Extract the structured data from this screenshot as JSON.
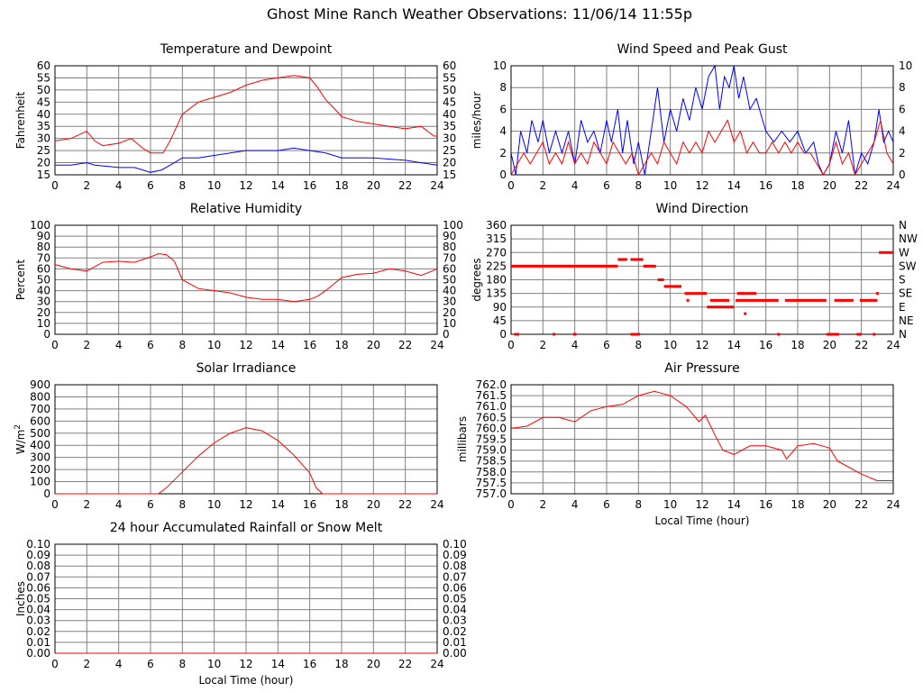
{
  "page": {
    "title": "Ghost Mine Ranch Weather Observations: 11/06/14 11:55p"
  },
  "colors": {
    "primary": "#ff0000",
    "secondary": "#0000ff",
    "grid": "#808080",
    "frame": "#000000"
  },
  "chart_data": [
    {
      "id": "temp",
      "type": "line",
      "title": "Temperature and Dewpoint",
      "xlabel": "",
      "ylabel": "Fahrenheit",
      "xlim": [
        0,
        24
      ],
      "ylim": [
        15,
        60
      ],
      "xticks": [
        0,
        2,
        4,
        6,
        8,
        10,
        12,
        14,
        16,
        18,
        20,
        22,
        24
      ],
      "yticks": [
        15,
        20,
        25,
        30,
        35,
        40,
        45,
        50,
        55,
        60
      ],
      "right_axis": true,
      "grid": true,
      "series": [
        {
          "color": "#ff0000",
          "x": [
            0,
            1,
            2,
            2.5,
            3,
            4,
            4.8,
            5.5,
            6,
            6.8,
            7.3,
            8,
            9,
            10,
            11,
            12,
            13,
            14,
            15,
            16,
            16.5,
            17,
            17.6,
            18,
            19,
            20,
            21,
            22,
            23,
            23.8,
            24
          ],
          "y": [
            29,
            30,
            33,
            29,
            27,
            28,
            30,
            26,
            24,
            24,
            30,
            40,
            45,
            47,
            49,
            52,
            54,
            55,
            56,
            55,
            51,
            46,
            42,
            39,
            37,
            36,
            35,
            34,
            35,
            31,
            31
          ]
        },
        {
          "color": "#0000ff",
          "x": [
            0,
            1,
            2,
            2.5,
            4,
            5,
            6,
            6.7,
            7.5,
            8,
            9,
            10,
            11,
            12,
            13,
            14,
            15,
            16,
            17,
            18,
            20,
            22,
            23,
            24
          ],
          "y": [
            19,
            19,
            20,
            19,
            18,
            18,
            16,
            17,
            20,
            22,
            22,
            23,
            24,
            25,
            25,
            25,
            26,
            25,
            24,
            22,
            22,
            21,
            20,
            19
          ]
        }
      ]
    },
    {
      "id": "wind",
      "type": "line",
      "title": "Wind Speed and Peak Gust",
      "xlabel": "",
      "ylabel": "miles/hour",
      "xlim": [
        0,
        24
      ],
      "ylim": [
        0,
        10
      ],
      "xticks": [
        0,
        2,
        4,
        6,
        8,
        10,
        12,
        14,
        16,
        18,
        20,
        22,
        24
      ],
      "yticks": [
        0,
        2,
        4,
        6,
        8,
        10
      ],
      "right_axis": true,
      "grid": true,
      "series": [
        {
          "color": "#0000ff",
          "x": [
            0,
            0.3,
            0.6,
            1,
            1.3,
            1.7,
            2,
            2.4,
            2.8,
            3.2,
            3.6,
            4,
            4.4,
            4.8,
            5.2,
            5.6,
            6,
            6.3,
            6.7,
            7,
            7.3,
            7.7,
            8,
            8.4,
            8.8,
            9.2,
            9.6,
            10,
            10.4,
            10.8,
            11.2,
            11.6,
            12,
            12.4,
            12.8,
            13.1,
            13.4,
            13.7,
            14,
            14.3,
            14.6,
            15,
            15.4,
            15.8,
            16,
            16.5,
            17,
            17.5,
            18,
            18.5,
            19,
            19.3,
            19.6,
            20,
            20.4,
            20.8,
            21.2,
            21.6,
            22,
            22.4,
            22.8,
            23.1,
            23.4,
            23.7,
            24
          ],
          "y": [
            2,
            0,
            4,
            2,
            5,
            3,
            5,
            2,
            4,
            2,
            4,
            1,
            5,
            3,
            4,
            2,
            5,
            3,
            6,
            2,
            5,
            1,
            3,
            0,
            4,
            8,
            3,
            6,
            4,
            7,
            5,
            8,
            6,
            9,
            10,
            6,
            9,
            8,
            10,
            7,
            9,
            6,
            7,
            5,
            4,
            3,
            4,
            3,
            4,
            2,
            3,
            1,
            0,
            1,
            4,
            2,
            5,
            0,
            2,
            1,
            3,
            6,
            3,
            4,
            3
          ]
        },
        {
          "color": "#ff0000",
          "x": [
            0,
            0.4,
            0.8,
            1.2,
            1.6,
            2,
            2.4,
            2.8,
            3.2,
            3.6,
            4,
            4.4,
            4.8,
            5.2,
            5.6,
            6,
            6.4,
            6.8,
            7.2,
            7.6,
            8,
            8.4,
            8.8,
            9.2,
            9.6,
            10,
            10.4,
            10.8,
            11.2,
            11.6,
            12,
            12.4,
            12.8,
            13.2,
            13.6,
            14,
            14.4,
            14.8,
            15.2,
            15.6,
            16,
            16.4,
            16.8,
            17.2,
            17.6,
            18,
            18.4,
            18.8,
            19.2,
            19.6,
            20,
            20.4,
            20.8,
            21.2,
            21.6,
            22,
            22.4,
            22.8,
            23.2,
            23.6,
            24
          ],
          "y": [
            0,
            1,
            2,
            1,
            2,
            3,
            1,
            2,
            1,
            3,
            1,
            2,
            1,
            3,
            2,
            1,
            3,
            2,
            1,
            2,
            0,
            1,
            2,
            1,
            3,
            2,
            1,
            3,
            2,
            3,
            2,
            4,
            3,
            4,
            5,
            3,
            4,
            2,
            3,
            2,
            2,
            3,
            2,
            3,
            2,
            3,
            2,
            2,
            1,
            0,
            1,
            3,
            1,
            2,
            0,
            1,
            2,
            3,
            5,
            2,
            1
          ]
        }
      ]
    },
    {
      "id": "rh",
      "type": "line",
      "title": "Relative Humidity",
      "xlabel": "",
      "ylabel": "Percent",
      "xlim": [
        0,
        24
      ],
      "ylim": [
        0,
        100
      ],
      "xticks": [
        0,
        2,
        4,
        6,
        8,
        10,
        12,
        14,
        16,
        18,
        20,
        22,
        24
      ],
      "yticks": [
        0,
        10,
        20,
        30,
        40,
        50,
        60,
        70,
        80,
        90,
        100
      ],
      "right_axis": true,
      "grid": true,
      "series": [
        {
          "color": "#ff0000",
          "x": [
            0,
            1,
            2,
            3,
            4,
            5,
            6,
            6.5,
            7,
            7.5,
            8,
            9,
            10,
            11,
            12,
            13,
            14,
            15,
            16,
            16.5,
            17,
            18,
            19,
            20,
            21,
            22,
            23,
            24
          ],
          "y": [
            64,
            60,
            58,
            66,
            67,
            66,
            71,
            74,
            73,
            67,
            50,
            42,
            40,
            38,
            34,
            32,
            32,
            30,
            32,
            35,
            40,
            52,
            55,
            56,
            60,
            58,
            54,
            60
          ]
        }
      ]
    },
    {
      "id": "dir",
      "type": "scatter",
      "title": "Wind Direction",
      "xlabel": "",
      "ylabel": "degrees",
      "xlim": [
        0,
        24
      ],
      "ylim": [
        0,
        360
      ],
      "xticks": [
        0,
        2,
        4,
        6,
        8,
        10,
        12,
        14,
        16,
        18,
        20,
        22,
        24
      ],
      "yticks": [
        0,
        45,
        90,
        135,
        180,
        225,
        270,
        315,
        360
      ],
      "right_labels": [
        "N",
        "NE",
        "E",
        "SE",
        "S",
        "SW",
        "W",
        "NW",
        "N"
      ],
      "grid": true,
      "segments": [
        {
          "x": [
            0,
            6.7
          ],
          "y": 225
        },
        {
          "x": [
            6.7,
            7.3
          ],
          "y": 247
        },
        {
          "x": [
            7.5,
            8.3
          ],
          "y": 247
        },
        {
          "x": [
            8.3,
            9.1
          ],
          "y": 225
        },
        {
          "x": [
            9.2,
            9.6
          ],
          "y": 180
        },
        {
          "x": [
            9.6,
            10.7
          ],
          "y": 158
        },
        {
          "x": [
            10.9,
            12.3
          ],
          "y": 135
        },
        {
          "x": [
            12.5,
            13.7
          ],
          "y": 112
        },
        {
          "x": [
            14.1,
            16.8
          ],
          "y": 112
        },
        {
          "x": [
            17.2,
            19.8
          ],
          "y": 112
        },
        {
          "x": [
            20.3,
            21.5
          ],
          "y": 112
        },
        {
          "x": [
            21.9,
            23
          ],
          "y": 112
        },
        {
          "x": [
            23.1,
            24
          ],
          "y": 270
        },
        {
          "x": [
            12.3,
            14
          ],
          "y": 90
        },
        {
          "x": [
            14.2,
            15.4
          ],
          "y": 135
        },
        {
          "x": [
            7.5,
            8.1
          ],
          "y": 0
        },
        {
          "x": [
            19.8,
            20.6
          ],
          "y": 0
        },
        {
          "x": [
            0.2,
            0.5
          ],
          "y": 0
        },
        {
          "x": [
            3.9,
            4.1
          ],
          "y": 0
        },
        {
          "x": [
            21.7,
            22
          ],
          "y": 0
        }
      ],
      "points": [
        {
          "x": 2.7,
          "y": 0
        },
        {
          "x": 16.8,
          "y": 0
        },
        {
          "x": 22.8,
          "y": 0
        },
        {
          "x": 11.1,
          "y": 112
        },
        {
          "x": 14.7,
          "y": 68
        },
        {
          "x": 23,
          "y": 135
        }
      ]
    },
    {
      "id": "solar",
      "type": "line",
      "title": "Solar Irradiance",
      "xlabel": "",
      "ylabel": "W/m",
      "ylabel_sup": "2",
      "xlim": [
        0,
        24
      ],
      "ylim": [
        0,
        900
      ],
      "xticks": [
        0,
        2,
        4,
        6,
        8,
        10,
        12,
        14,
        16,
        18,
        20,
        22,
        24
      ],
      "yticks": [
        0,
        100,
        200,
        300,
        400,
        500,
        600,
        700,
        800,
        900
      ],
      "right_axis": false,
      "grid": true,
      "series": [
        {
          "color": "#ff0000",
          "x": [
            0,
            6.5,
            7,
            8,
            9,
            10,
            11,
            12,
            13,
            14,
            15,
            16,
            16.4,
            16.8,
            24
          ],
          "y": [
            0,
            0,
            50,
            180,
            310,
            420,
            500,
            545,
            520,
            440,
            320,
            170,
            50,
            0,
            0
          ]
        }
      ]
    },
    {
      "id": "pressure",
      "type": "line",
      "title": "Air Pressure",
      "xlabel": "Local Time (hour)",
      "ylabel": "millibars",
      "xlim": [
        0,
        24
      ],
      "ylim": [
        757.0,
        762.0
      ],
      "xticks": [
        0,
        2,
        4,
        6,
        8,
        10,
        12,
        14,
        16,
        18,
        20,
        22,
        24
      ],
      "yticks": [
        757.0,
        757.5,
        758.0,
        758.5,
        759.0,
        759.5,
        760.0,
        760.5,
        761.0,
        761.5,
        762.0
      ],
      "ytick_labels": [
        "757.0",
        "757.5",
        "758.0",
        "758.5",
        "759.0",
        "759.5",
        "760.0",
        "760.5",
        "761.0",
        "761.5",
        "762.0"
      ],
      "right_axis": false,
      "grid": true,
      "series": [
        {
          "color": "#ff0000",
          "x": [
            0,
            1,
            2,
            3,
            4,
            5,
            6,
            7,
            8,
            9,
            9.5,
            10,
            11,
            11.8,
            12.2,
            12.8,
            13.3,
            14,
            15,
            16,
            17,
            17.3,
            18,
            19,
            20,
            20.5,
            21,
            22,
            23,
            24
          ],
          "y": [
            760.0,
            760.1,
            760.5,
            760.5,
            760.3,
            760.8,
            761.0,
            761.1,
            761.5,
            761.7,
            761.6,
            761.5,
            761.0,
            760.3,
            760.6,
            759.7,
            759.0,
            758.8,
            759.2,
            759.2,
            759.0,
            758.6,
            759.2,
            759.3,
            759.1,
            758.5,
            758.3,
            757.9,
            757.6,
            757.6
          ]
        }
      ]
    },
    {
      "id": "rain",
      "type": "line",
      "title": "24 hour Accumulated Rainfall or Snow Melt",
      "xlabel": "Local Time (hour)",
      "ylabel": "Inches",
      "xlim": [
        0,
        24
      ],
      "ylim": [
        0,
        0.1
      ],
      "xticks": [
        0,
        2,
        4,
        6,
        8,
        10,
        12,
        14,
        16,
        18,
        20,
        22,
        24
      ],
      "yticks": [
        0,
        0.01,
        0.02,
        0.03,
        0.04,
        0.05,
        0.06,
        0.07,
        0.08,
        0.09,
        0.1
      ],
      "ytick_labels": [
        "0.00",
        "0.01",
        "0.02",
        "0.03",
        "0.04",
        "0.05",
        "0.06",
        "0.07",
        "0.08",
        "0.09",
        "0.10"
      ],
      "right_axis": true,
      "grid": true,
      "series": [
        {
          "color": "#ff0000",
          "x": [
            0,
            24
          ],
          "y": [
            0,
            0
          ]
        }
      ]
    }
  ]
}
